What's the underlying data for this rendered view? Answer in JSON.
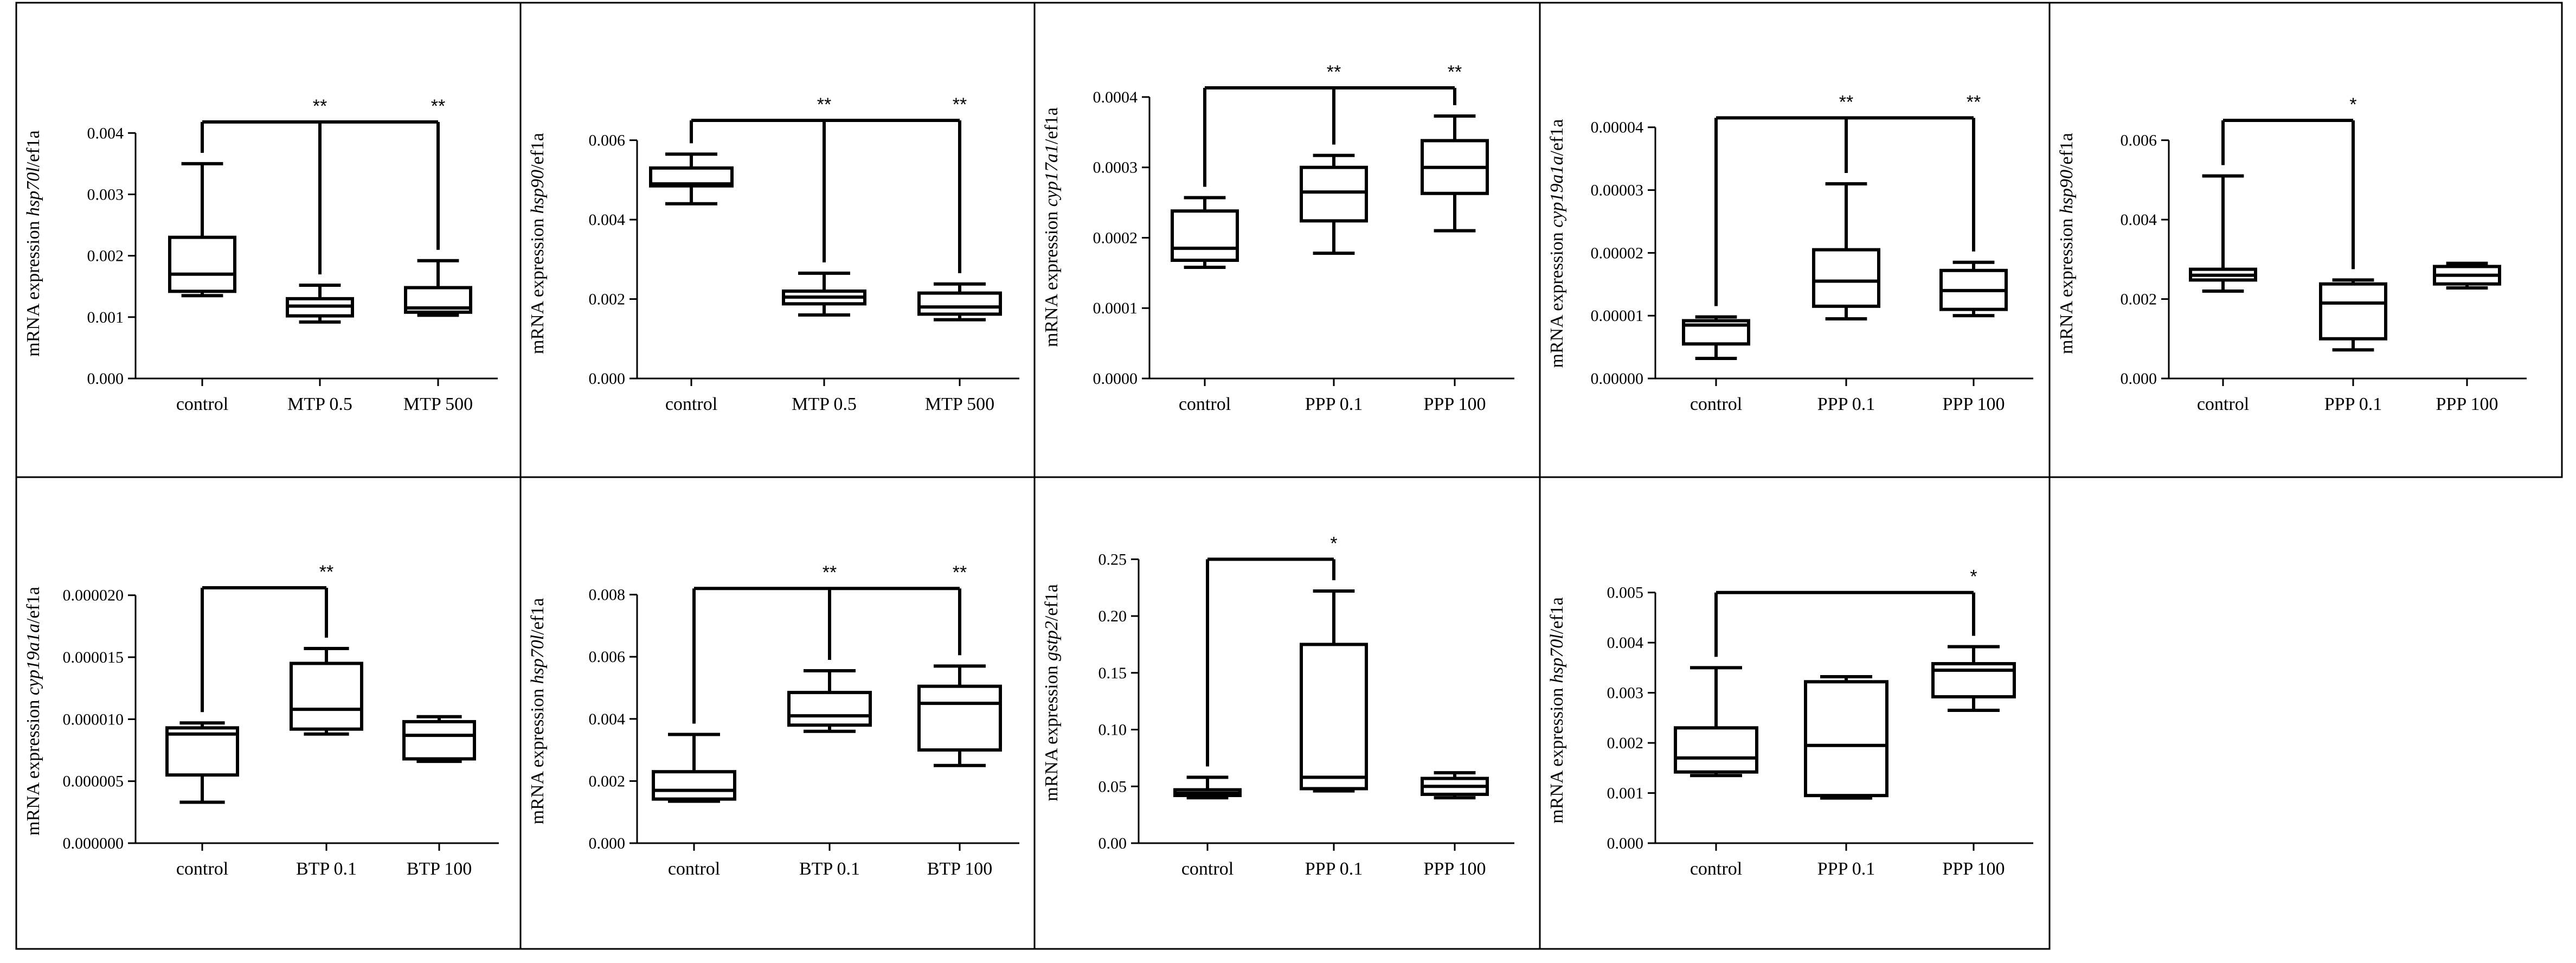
{
  "chart_data": [
    {
      "type": "box",
      "ylabel_prefix": "mRNA expression ",
      "gene": "hsp70l",
      "ylabel_suffix": "/ef1a",
      "yticks": [
        "0.000",
        "0.001",
        "0.002",
        "0.003",
        "0.004"
      ],
      "ylim": [
        0,
        0.0044
      ],
      "categories": [
        "control",
        "MTP 0.5",
        "MTP 500"
      ],
      "boxes": [
        {
          "min": 0.00135,
          "q1": 0.00142,
          "median": 0.0017,
          "q3": 0.0023,
          "max": 0.0035
        },
        {
          "min": 0.00092,
          "q1": 0.00102,
          "median": 0.00118,
          "q3": 0.0013,
          "max": 0.00152
        },
        {
          "min": 0.00103,
          "q1": 0.00108,
          "median": 0.00115,
          "q3": 0.00148,
          "max": 0.00192
        }
      ],
      "brackets": [
        {
          "from": 0,
          "to": [
            1,
            2
          ],
          "level": 0.00418,
          "labels": [
            "**",
            "**"
          ]
        }
      ]
    },
    {
      "type": "box",
      "ylabel_prefix": "mRNA expression ",
      "gene": "hsp90",
      "ylabel_suffix": "/ef1a",
      "yticks": [
        "0.000",
        "0.002",
        "0.004",
        "0.006"
      ],
      "ylim": [
        0,
        0.0068
      ],
      "categories": [
        "control",
        "MTP 0.5",
        "MTP 500"
      ],
      "boxes": [
        {
          "min": 0.0044,
          "q1": 0.00485,
          "median": 0.0049,
          "q3": 0.0053,
          "max": 0.00565
        },
        {
          "min": 0.0016,
          "q1": 0.00188,
          "median": 0.00205,
          "q3": 0.0022,
          "max": 0.00265
        },
        {
          "min": 0.00148,
          "q1": 0.00162,
          "median": 0.0018,
          "q3": 0.00215,
          "max": 0.00238
        }
      ],
      "brackets": [
        {
          "from": 0,
          "to": [
            1,
            2
          ],
          "level": 0.0065,
          "labels": [
            "**",
            "**"
          ]
        }
      ]
    },
    {
      "type": "box",
      "ylabel_prefix": "mRNA expression ",
      "gene": "cyp17a1",
      "ylabel_suffix": "/ef1a",
      "yticks": [
        "0.0000",
        "0.0001",
        "0.0002",
        "0.0003",
        "0.0004"
      ],
      "ylim": [
        0,
        0.00043
      ],
      "categories": [
        "control",
        "PPP 0.1",
        "PPP 100"
      ],
      "boxes": [
        {
          "min": 0.000158,
          "q1": 0.000168,
          "median": 0.000185,
          "q3": 0.000238,
          "max": 0.000257
        },
        {
          "min": 0.000178,
          "q1": 0.000224,
          "median": 0.000265,
          "q3": 0.0003,
          "max": 0.000317
        },
        {
          "min": 0.00021,
          "q1": 0.000263,
          "median": 0.0003,
          "q3": 0.000338,
          "max": 0.000373
        }
      ],
      "brackets": [
        {
          "from": 0,
          "to": [
            1,
            2
          ],
          "level": 0.000413,
          "labels": [
            "**",
            "**"
          ]
        }
      ]
    },
    {
      "type": "box",
      "ylabel_prefix": "mRNA expression ",
      "gene": "cyp19a1a",
      "ylabel_suffix": "/ef1a",
      "yticks": [
        "0.00000",
        "0.00001",
        "0.00002",
        "0.00003",
        "0.00004"
      ],
      "ylim": [
        0,
        4.3e-05
      ],
      "categories": [
        "control",
        "PPP 0.1",
        "PPP 100"
      ],
      "boxes": [
        {
          "min": 3.2e-06,
          "q1": 5.5e-06,
          "median": 8.5e-06,
          "q3": 9.2e-06,
          "max": 9.8e-06
        },
        {
          "min": 9.5e-06,
          "q1": 1.15e-05,
          "median": 1.55e-05,
          "q3": 2.05e-05,
          "max": 3.1e-05
        },
        {
          "min": 1e-05,
          "q1": 1.1e-05,
          "median": 1.4e-05,
          "q3": 1.72e-05,
          "max": 1.85e-05
        }
      ],
      "brackets": [
        {
          "from": 0,
          "to": [
            1,
            2
          ],
          "level": 4.15e-05,
          "labels": [
            "**",
            "**"
          ]
        }
      ]
    },
    {
      "type": "box",
      "ylabel_prefix": "mRNA expression ",
      "gene": "hsp90",
      "ylabel_suffix": "/ef1a",
      "yticks": [
        "0.000",
        "0.002",
        "0.004",
        "0.006"
      ],
      "ylim": [
        0,
        0.0068
      ],
      "categories": [
        "control",
        "PPP 0.1",
        "PPP 100"
      ],
      "boxes": [
        {
          "min": 0.0022,
          "q1": 0.00248,
          "median": 0.0026,
          "q3": 0.00275,
          "max": 0.0051
        },
        {
          "min": 0.00072,
          "q1": 0.001,
          "median": 0.0019,
          "q3": 0.00238,
          "max": 0.00248
        },
        {
          "min": 0.00228,
          "q1": 0.00238,
          "median": 0.0026,
          "q3": 0.00282,
          "max": 0.0029
        }
      ],
      "brackets": [
        {
          "from": 0,
          "to": [
            1
          ],
          "level": 0.0065,
          "labels": [
            "*"
          ]
        }
      ]
    },
    {
      "type": "box",
      "ylabel_prefix": "mRNA expression ",
      "gene": "cyp19a1a",
      "ylabel_suffix": "/ef1a",
      "yticks": [
        "0.000000",
        "0.000005",
        "0.000010",
        "0.000015",
        "0.000020"
      ],
      "ylim": [
        0,
        2.13e-05
      ],
      "categories": [
        "control",
        "BTP 0.1",
        "BTP 100"
      ],
      "boxes": [
        {
          "min": 3.3e-06,
          "q1": 5.5e-06,
          "median": 8.8e-06,
          "q3": 9.3e-06,
          "max": 9.7e-06
        },
        {
          "min": 8.8e-06,
          "q1": 9.2e-06,
          "median": 1.08e-05,
          "q3": 1.45e-05,
          "max": 1.57e-05
        },
        {
          "min": 6.6e-06,
          "q1": 6.8e-06,
          "median": 8.7e-06,
          "q3": 9.8e-06,
          "max": 1.02e-05
        }
      ],
      "brackets": [
        {
          "from": 0,
          "to": [
            1
          ],
          "level": 2.06e-05,
          "labels": [
            "**"
          ]
        }
      ]
    },
    {
      "type": "box",
      "ylabel_prefix": "mRNA expression ",
      "gene": "hsp70l",
      "ylabel_suffix": "/ef1a",
      "yticks": [
        "0.000",
        "0.002",
        "0.004",
        "0.006",
        "0.008"
      ],
      "ylim": [
        0,
        0.0085
      ],
      "categories": [
        "control",
        "BTP 0.1",
        "BTP 100"
      ],
      "boxes": [
        {
          "min": 0.00135,
          "q1": 0.00142,
          "median": 0.0017,
          "q3": 0.0023,
          "max": 0.0035
        },
        {
          "min": 0.0036,
          "q1": 0.0038,
          "median": 0.0041,
          "q3": 0.00485,
          "max": 0.00555
        },
        {
          "min": 0.0025,
          "q1": 0.003,
          "median": 0.0045,
          "q3": 0.00505,
          "max": 0.0057
        }
      ],
      "brackets": [
        {
          "from": 0,
          "to": [
            1,
            2
          ],
          "level": 0.0082,
          "labels": [
            "**",
            "**"
          ]
        }
      ]
    },
    {
      "type": "box",
      "ylabel_prefix": "mRNA expression ",
      "gene": "gstp2",
      "ylabel_suffix": "/ef1a",
      "yticks": [
        "0.00",
        "0.05",
        "0.10",
        "0.15",
        "0.20",
        "0.25"
      ],
      "ylim": [
        0,
        0.265
      ],
      "categories": [
        "control",
        "PPP 0.1",
        "PPP 100"
      ],
      "boxes": [
        {
          "min": 0.04,
          "q1": 0.042,
          "median": 0.044,
          "q3": 0.047,
          "max": 0.058
        },
        {
          "min": 0.046,
          "q1": 0.048,
          "median": 0.058,
          "q3": 0.175,
          "max": 0.222
        },
        {
          "min": 0.04,
          "q1": 0.043,
          "median": 0.05,
          "q3": 0.057,
          "max": 0.062
        }
      ],
      "brackets": [
        {
          "from": 0,
          "to": [
            1
          ],
          "level": 0.25,
          "labels": [
            "*"
          ]
        }
      ]
    },
    {
      "type": "box",
      "ylabel_prefix": "mRNA expression ",
      "gene": "hsp70l",
      "ylabel_suffix": "/ef1a",
      "yticks": [
        "0.000",
        "0.001",
        "0.002",
        "0.003",
        "0.004",
        "0.005"
      ],
      "ylim": [
        0,
        0.0053
      ],
      "categories": [
        "control",
        "PPP 0.1",
        "PPP 100"
      ],
      "boxes": [
        {
          "min": 0.00135,
          "q1": 0.00142,
          "median": 0.0017,
          "q3": 0.0023,
          "max": 0.0035
        },
        {
          "min": 0.0009,
          "q1": 0.00095,
          "median": 0.00195,
          "q3": 0.00322,
          "max": 0.00332
        },
        {
          "min": 0.00265,
          "q1": 0.00292,
          "median": 0.00345,
          "q3": 0.00358,
          "max": 0.00392
        }
      ],
      "brackets": [
        {
          "from": 0,
          "to": [
            2
          ],
          "level": 0.005,
          "labels": [
            "*"
          ]
        }
      ]
    }
  ]
}
